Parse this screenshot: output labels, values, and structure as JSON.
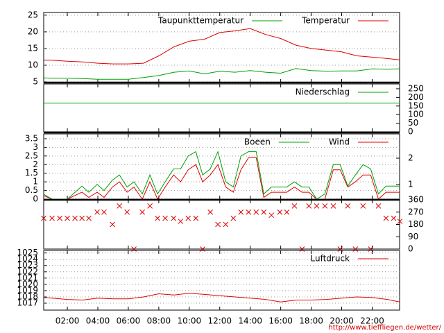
{
  "chart_data": [
    {
      "type": "line",
      "xlim": [
        0.45,
        23.8
      ],
      "ylim": [
        4.8,
        25.8
      ],
      "yticks": [
        5,
        10,
        15,
        20,
        25
      ],
      "yaxis": "left",
      "grid": true,
      "x": [
        0.45,
        1,
        2,
        3,
        4,
        5,
        6,
        7,
        8,
        9,
        10,
        11,
        12,
        13,
        14,
        15,
        16,
        17,
        18,
        19,
        20,
        21,
        22,
        23,
        23.8
      ],
      "series": [
        {
          "name": "Temperatur",
          "color": "#e00000",
          "values": [
            11.5,
            11.5,
            11.2,
            11.0,
            10.6,
            10.4,
            10.4,
            10.6,
            12.8,
            15.5,
            17.2,
            17.8,
            19.8,
            20.3,
            21.0,
            19.2,
            18.0,
            16.0,
            15.0,
            14.5,
            14.0,
            12.8,
            12.4,
            12.0,
            11.6
          ]
        },
        {
          "name": "Taupunkttemperatur",
          "color": "#00a000",
          "values": [
            6.2,
            6.1,
            6.1,
            6.0,
            5.8,
            5.8,
            5.8,
            6.3,
            6.9,
            7.9,
            8.3,
            7.4,
            8.2,
            7.9,
            8.4,
            7.9,
            7.6,
            9.0,
            8.4,
            8.2,
            8.3,
            8.3,
            8.9,
            8.8,
            8.9
          ]
        }
      ]
    },
    {
      "type": "line",
      "xlim": [
        0.45,
        23.8
      ],
      "ylim": [
        0,
        278
      ],
      "yticks": [
        0,
        50,
        100,
        150,
        200,
        250
      ],
      "yaxis": "right",
      "grid": false,
      "x": [
        0.45,
        23.8
      ],
      "series": [
        {
          "name": "Niederschlag",
          "color": "#00a000",
          "values": [
            167,
            167
          ]
        }
      ]
    },
    {
      "type": "line",
      "xlim": [
        0.45,
        23.8
      ],
      "ylim": [
        0,
        3.78
      ],
      "yticks": [
        0,
        0.5,
        1,
        1.5,
        2,
        2.5,
        3,
        3.5
      ],
      "yaxis": "left",
      "grid": true,
      "y2lim": [
        0.45,
        2.92
      ],
      "y2ticks": [
        1,
        2
      ],
      "x": [
        0.45,
        1.0,
        2,
        2.96,
        3.41,
        3.96,
        4.41,
        4.96,
        5.42,
        5.92,
        6.37,
        6.92,
        7.42,
        7.92,
        8.42,
        8.97,
        9.43,
        9.93,
        10.43,
        10.88,
        11.38,
        11.88,
        12.39,
        12.89,
        13.39,
        13.89,
        14.39,
        14.89,
        15.39,
        15.94,
        16.4,
        16.9,
        17.4,
        17.85,
        18.36,
        18.9,
        19.45,
        19.9,
        20.4,
        20.9,
        21.4,
        21.9,
        22.41,
        22.91,
        23.82
      ],
      "series": [
        {
          "name": "Wind",
          "color": "#e00000",
          "values": [
            0.2,
            0,
            0,
            0.4,
            0.1,
            0.4,
            0.1,
            0.7,
            1.0,
            0.4,
            0.7,
            0,
            1.0,
            0,
            0.7,
            1.4,
            1.0,
            1.7,
            2.0,
            1.0,
            1.4,
            2.0,
            0.7,
            0.4,
            1.7,
            2.4,
            2.4,
            0.1,
            0.4,
            0.4,
            0.4,
            0.7,
            0.4,
            0.4,
            0,
            0,
            1.7,
            1.7,
            0.7,
            1.0,
            1.4,
            1.4,
            0,
            0.4,
            0.4
          ]
        },
        {
          "name": "Boeen",
          "color": "#00a000",
          "values": [
            0.28,
            0,
            0,
            0.75,
            0.4,
            0.85,
            0.5,
            1.1,
            1.4,
            0.7,
            1.0,
            0.3,
            1.4,
            0.3,
            1.0,
            1.75,
            1.75,
            2.5,
            2.75,
            1.4,
            1.75,
            2.75,
            1.0,
            0.7,
            2.5,
            2.75,
            2.75,
            0.3,
            0.7,
            0.7,
            0.7,
            1.0,
            0.7,
            0.7,
            0,
            0.3,
            2.0,
            2.0,
            0.75,
            1.4,
            2.0,
            1.75,
            0.3,
            0.75,
            0.75
          ]
        }
      ]
    },
    {
      "type": "scatter",
      "marker": "x",
      "color": "#e00000",
      "xlim": [
        0.45,
        23.8
      ],
      "ylim": [
        0,
        360
      ],
      "yticks": [
        0,
        90,
        180,
        270,
        360
      ],
      "yaxis": "right",
      "grid": false,
      "x": [
        0.45,
        1.0,
        1.5,
        2,
        2.5,
        2.96,
        3.41,
        3.96,
        4.41,
        4.96,
        5.42,
        5.92,
        6.37,
        6.92,
        7.42,
        7.92,
        8.42,
        8.97,
        9.43,
        9.93,
        10.43,
        10.88,
        11.38,
        11.88,
        12.39,
        12.89,
        13.39,
        13.89,
        14.39,
        14.89,
        15.39,
        15.94,
        16.4,
        16.9,
        17.4,
        17.85,
        18.36,
        18.9,
        19.45,
        19.9,
        20.4,
        20.9,
        21.4,
        21.9,
        22.41,
        22.91,
        23.41,
        23.82
      ],
      "values": [
        225,
        225,
        225,
        225,
        225,
        225,
        225,
        270,
        270,
        180,
        315,
        270,
        0,
        270,
        315,
        225,
        225,
        225,
        202.5,
        225,
        225,
        0,
        270,
        180,
        180,
        225,
        270,
        270,
        270,
        270,
        247.5,
        270,
        270,
        315,
        0,
        315,
        315,
        315,
        315,
        0,
        315,
        0,
        315,
        0,
        315,
        225,
        225,
        202.5
      ]
    },
    {
      "type": "line",
      "xlim": [
        0.45,
        23.8
      ],
      "ylim": [
        1015.9,
        1025.4
      ],
      "yticks": [
        1017,
        1018,
        1019,
        1020,
        1021,
        1022,
        1023,
        1024,
        1025
      ],
      "yaxis": "left",
      "grid": true,
      "xticks": [
        {
          "value": 2,
          "label": "02:00"
        },
        {
          "value": 4,
          "label": "04:00"
        },
        {
          "value": 6,
          "label": "06:00"
        },
        {
          "value": 8,
          "label": "08:00"
        },
        {
          "value": 10,
          "label": "10:00"
        },
        {
          "value": 12,
          "label": "12:00"
        },
        {
          "value": 14,
          "label": "14:00"
        },
        {
          "value": 16,
          "label": "16:00"
        },
        {
          "value": 18,
          "label": "18:00"
        },
        {
          "value": 20,
          "label": "20:00"
        },
        {
          "value": 22,
          "label": "22:00"
        }
      ],
      "x": [
        0.45,
        1,
        2,
        3,
        4,
        5,
        6,
        7,
        8,
        9,
        10,
        11,
        12,
        13,
        14,
        15,
        16,
        17,
        18,
        19,
        20,
        21,
        22,
        23,
        23.8
      ],
      "series": [
        {
          "name": "Luftdruck",
          "color": "#e00000",
          "values": [
            1017.9,
            1017.8,
            1017.6,
            1017.5,
            1017.8,
            1017.7,
            1017.7,
            1018.0,
            1018.5,
            1018.3,
            1018.6,
            1018.4,
            1018.2,
            1018.0,
            1017.8,
            1017.6,
            1017.2,
            1017.5,
            1017.5,
            1017.6,
            1017.8,
            1018.0,
            1017.9,
            1017.6,
            1017.2
          ]
        }
      ]
    }
  ],
  "footer": "http://www.tieffliegen.de/wetter/"
}
